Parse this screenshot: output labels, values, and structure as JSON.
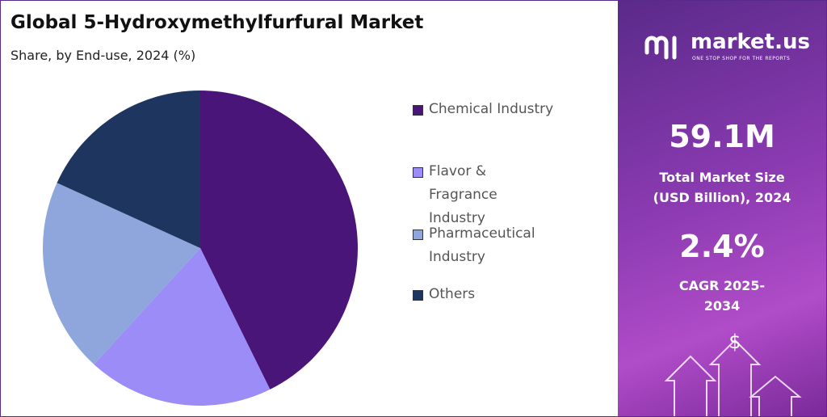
{
  "chart_data": {
    "type": "pie",
    "title": "Global 5-Hydroxymethylfurfural Market",
    "subtitle": "Share, by End-use, 2024 (%)",
    "categories": [
      "Chemical Industry",
      "Flavor & Fragrance Industry",
      "Pharmaceutical Industry",
      "Others"
    ],
    "values": [
      42.7,
      19.1,
      20.0,
      18.2
    ],
    "colors": [
      "#4a1578",
      "#9b8cf7",
      "#8ea6dc",
      "#1e3560"
    ]
  },
  "panel": {
    "brand": "market.us",
    "tagline": "ONE STOP SHOP FOR THE REPORTS",
    "market_size": "59.1M",
    "market_size_label": "Total Market Size (USD Billion), 2024",
    "cagr": "2.4%",
    "cagr_label": "CAGR 2025-2034"
  }
}
